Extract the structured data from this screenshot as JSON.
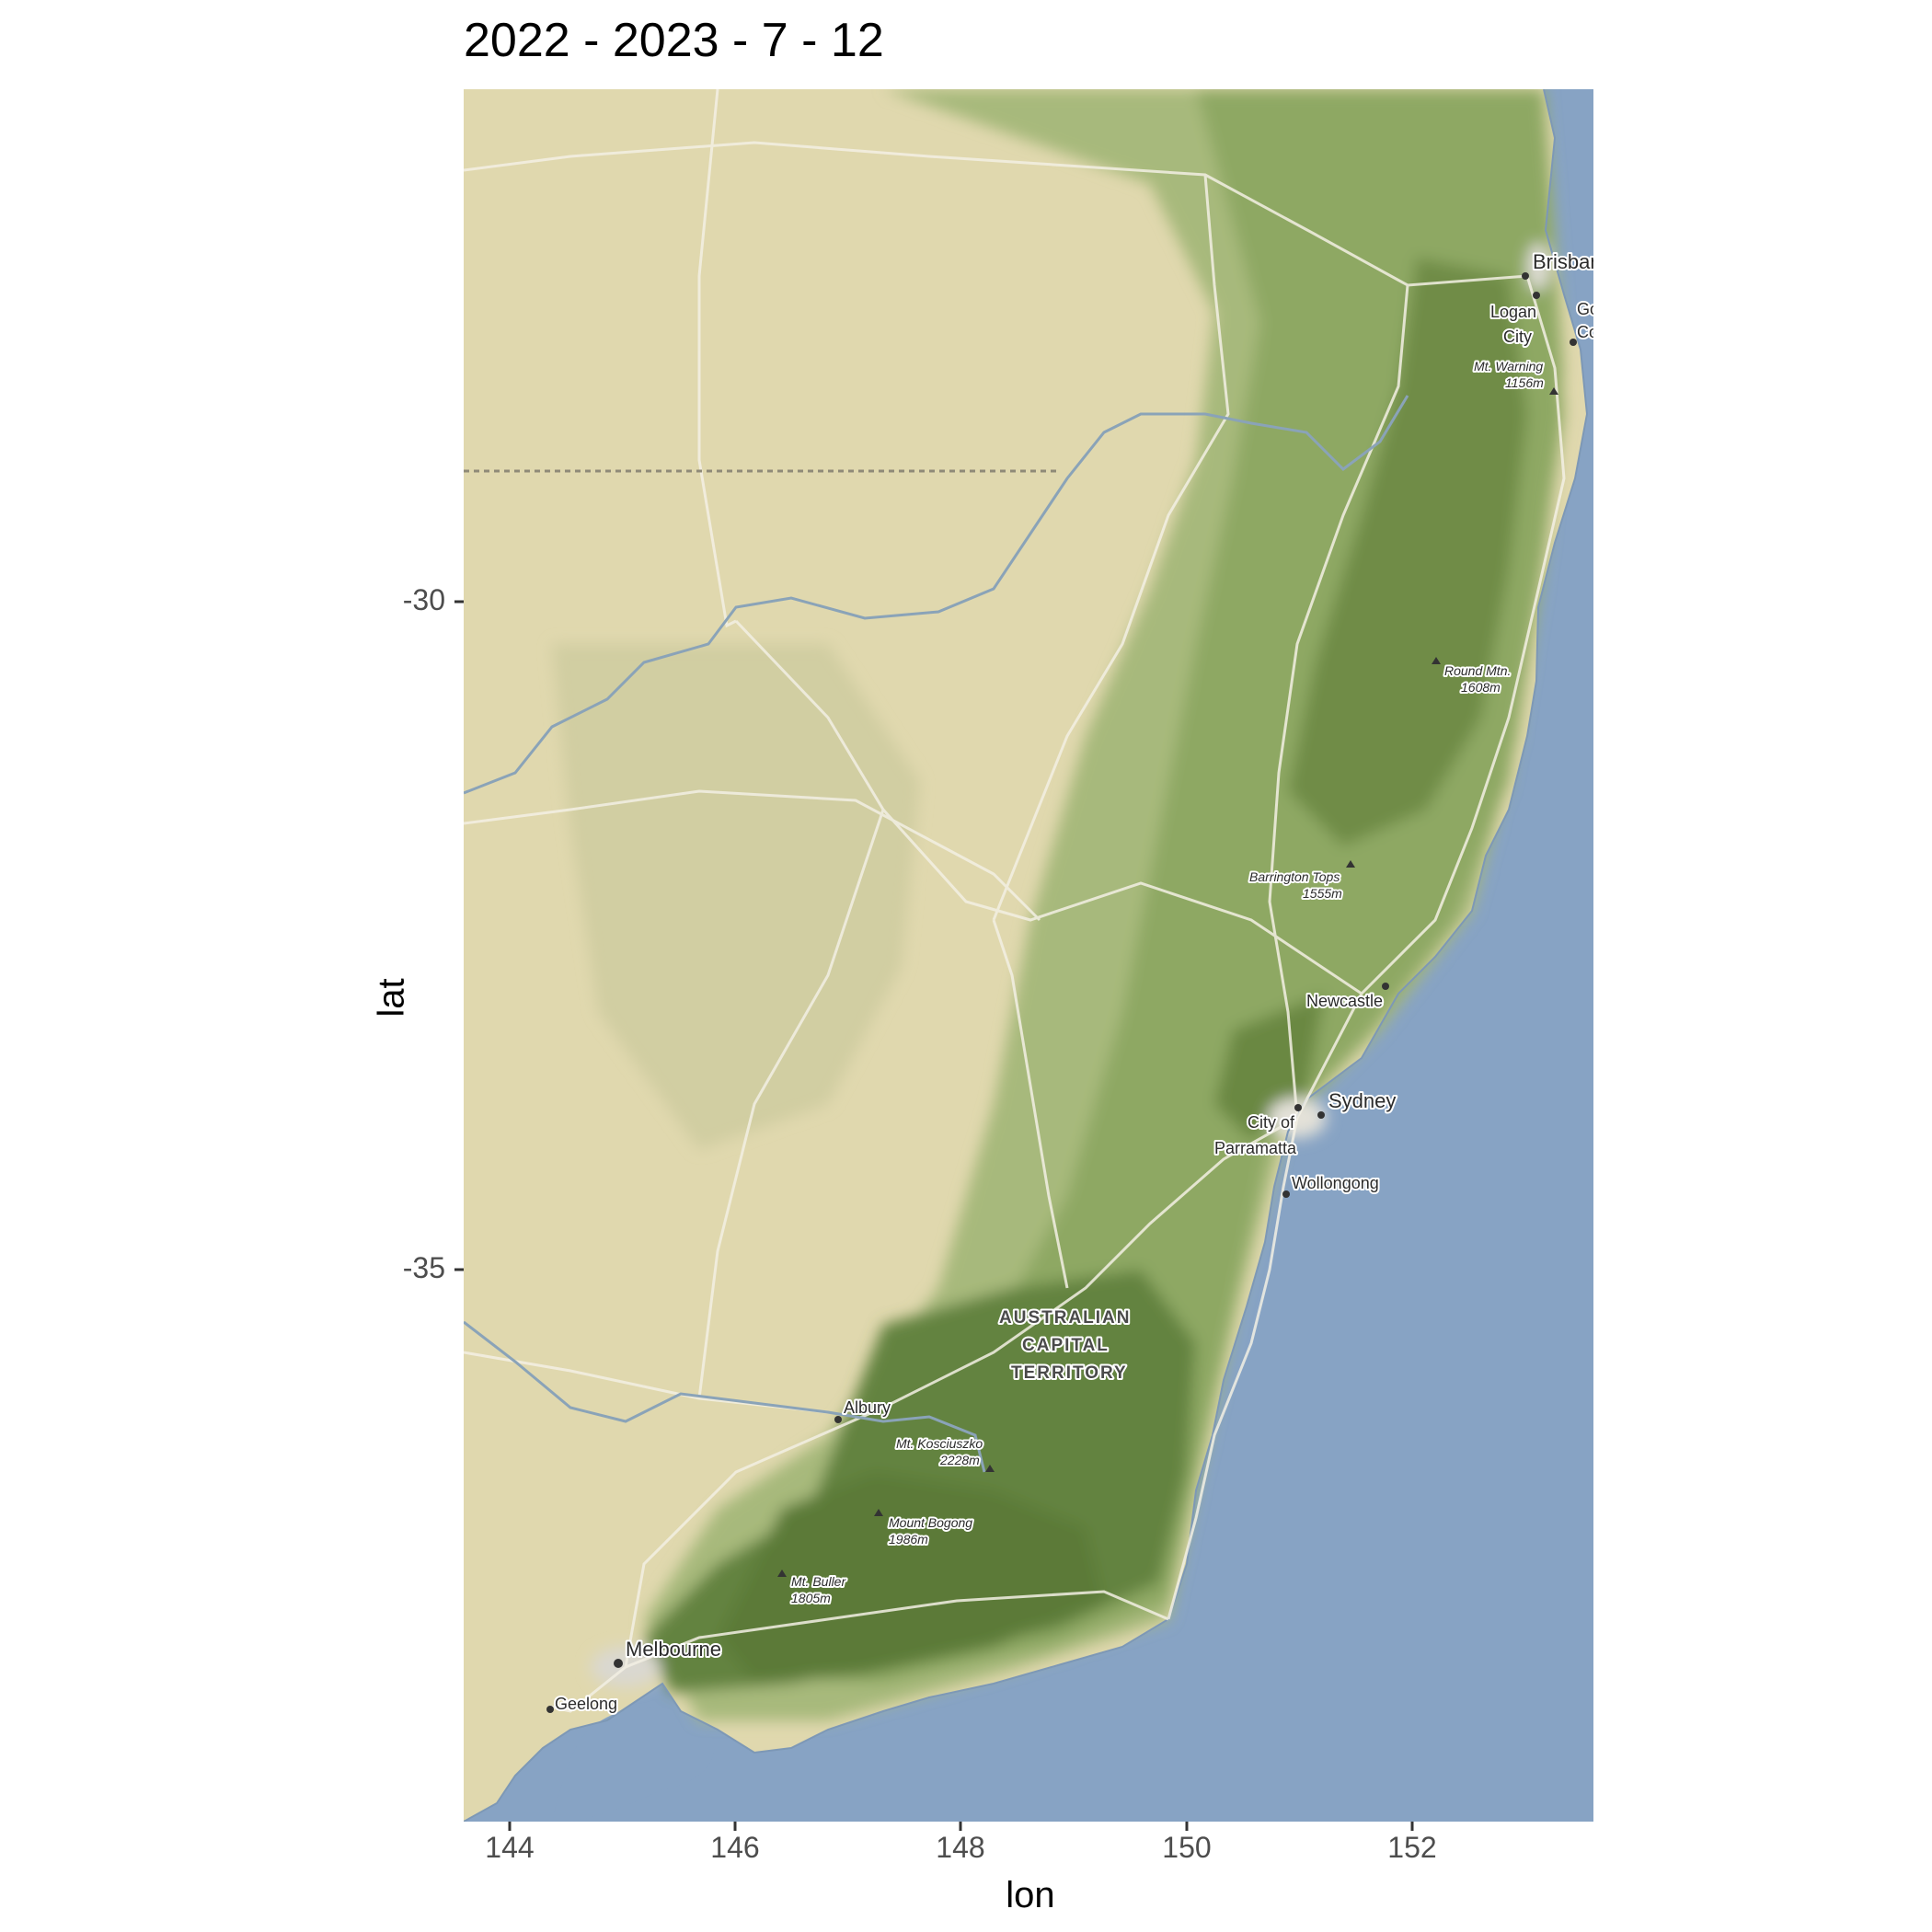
{
  "title": "2022 - 2023 - 7 - 12",
  "axes": {
    "xlabel": "lon",
    "ylabel": "lat",
    "xticks": [
      "144",
      "146",
      "148",
      "150",
      "152"
    ],
    "yticks": [
      "-30",
      "-35"
    ]
  },
  "places": {
    "brisbane": "Brisbane",
    "logan_1": "Logan",
    "logan_2": "City",
    "gold_1": "Go",
    "gold_2": "Co",
    "warning_1": "Mt. Warning",
    "warning_2": "1156m",
    "round_1": "Round Mtn.",
    "round_2": "1608m",
    "barrington_1": "Barrington Tops",
    "barrington_2": "1555m",
    "newcastle": "Newcastle",
    "sydney": "Sydney",
    "parramatta_1": "City of",
    "parramatta_2": "Parramatta",
    "wollongong": "Wollongong",
    "act_1": "AUSTRALIAN",
    "act_2": "CAPITAL",
    "act_3": "TERRITORY",
    "albury": "Albury",
    "kosciuszko_1": "Mt. Kosciuszko",
    "kosciuszko_2": "2228m",
    "bogong_1": "Mount Bogong",
    "bogong_2": "1986m",
    "buller_1": "Mt. Buller",
    "buller_2": "1805m",
    "melbourne": "Melbourne",
    "geelong": "Geelong"
  },
  "colors": {
    "land_dry": "#e0d8ae",
    "land_green": "#8fa86a",
    "forest": "#5f7d3c",
    "ocean": "#87a3c4",
    "road": "#f3f0e4",
    "river": "#8aa3b8"
  }
}
